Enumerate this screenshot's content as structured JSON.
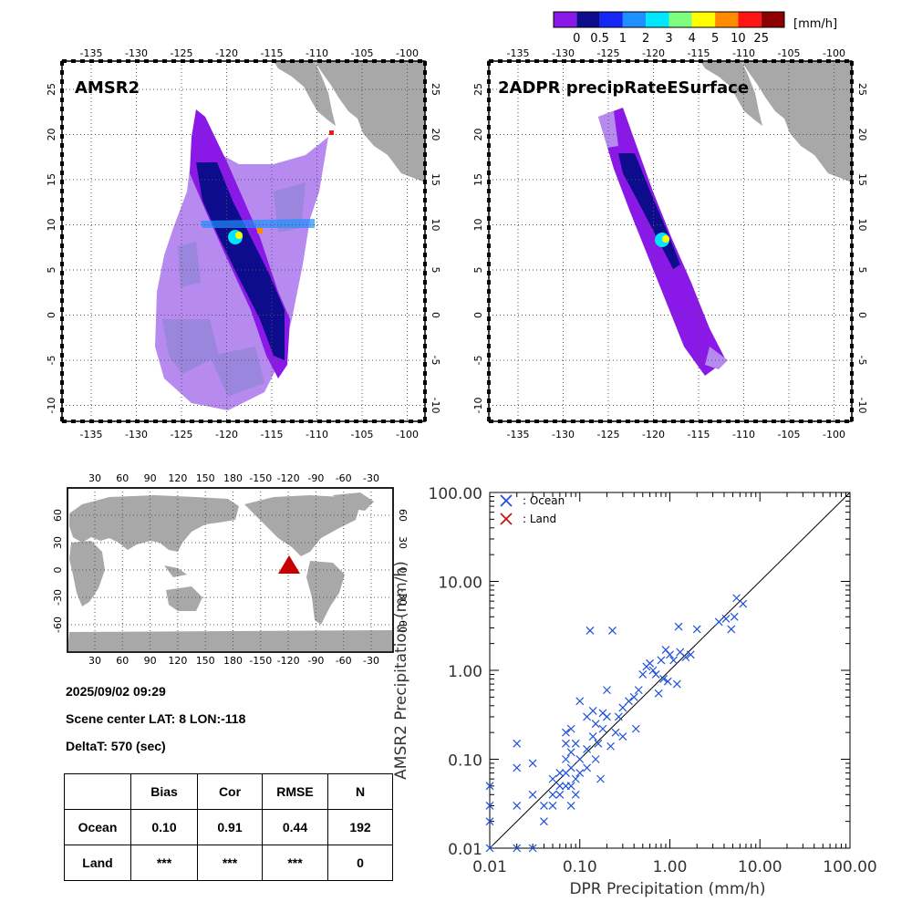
{
  "colorbar": {
    "unit": "[mm/h]",
    "labels": [
      "0",
      "0.5",
      "1",
      "2",
      "3",
      "4",
      "5",
      "10",
      "25"
    ],
    "colors": [
      "#8a18e6",
      "#0c0c8c",
      "#1428f5",
      "#1e90ff",
      "#00e6ff",
      "#7dff7d",
      "#ffff00",
      "#ff8c00",
      "#ff1414",
      "#8c0000"
    ]
  },
  "maps": {
    "left_title": "AMSR2",
    "right_title": "2ADPR precipRateESurface",
    "lon_labels": [
      "-135",
      "-130",
      "-125",
      "-120",
      "-115",
      "-110",
      "-105",
      "-100"
    ],
    "lat_labels": [
      "25",
      "20",
      "15",
      "10",
      "5",
      "0",
      "-5",
      "-10"
    ],
    "land_color": "#a8a8a8",
    "swath_colors": {
      "light": "#b78af0",
      "grayish": "#9a86dc",
      "violet": "#8a18e6",
      "navy": "#0c0c8c"
    }
  },
  "world_map": {
    "top_lon_labels": [
      "30",
      "60",
      "90",
      "120",
      "150",
      "180",
      "-150",
      "-120",
      "-90",
      "-60",
      "-30"
    ],
    "lat_labels": [
      "60",
      "30",
      "0",
      "-30",
      "-60"
    ],
    "marker_color": "#c80000"
  },
  "info": {
    "datetime": "2025/09/02 09:29",
    "scene_center": "Scene center LAT:  8   LON:-118",
    "deltat": "DeltaT:  570 (sec)"
  },
  "stats_table": {
    "headers": [
      "",
      "Bias",
      "Cor",
      "RMSE",
      "N"
    ],
    "rows": [
      [
        "Ocean",
        "0.10",
        "0.91",
        "0.44",
        "192"
      ],
      [
        "Land",
        "***",
        "***",
        "***",
        "0"
      ]
    ]
  },
  "chart_data": {
    "type": "scatter",
    "xlabel": "DPR Precipitation (mm/h)",
    "ylabel": "AMSR2 Precipitation (mm/h)",
    "xscale": "log",
    "yscale": "log",
    "xlim": [
      0.01,
      100
    ],
    "ylim": [
      0.01,
      100
    ],
    "x_ticks": [
      "0.01",
      "0.10",
      "1.00",
      "10.00",
      "100.00"
    ],
    "y_ticks": [
      "0.01",
      "0.10",
      "1.00",
      "10.00",
      "100.00"
    ],
    "reference_line": "1:1",
    "legend_position": "top-left",
    "series": [
      {
        "name": ": Ocean",
        "color": "#1e50dc",
        "marker": "x",
        "points": [
          [
            0.01,
            0.05
          ],
          [
            0.01,
            0.03
          ],
          [
            0.01,
            0.02
          ],
          [
            0.01,
            0.01
          ],
          [
            0.02,
            0.15
          ],
          [
            0.02,
            0.08
          ],
          [
            0.02,
            0.03
          ],
          [
            0.02,
            0.01
          ],
          [
            0.03,
            0.09
          ],
          [
            0.03,
            0.04
          ],
          [
            0.03,
            0.01
          ],
          [
            0.04,
            0.03
          ],
          [
            0.04,
            0.02
          ],
          [
            0.05,
            0.06
          ],
          [
            0.05,
            0.04
          ],
          [
            0.05,
            0.03
          ],
          [
            0.06,
            0.07
          ],
          [
            0.06,
            0.05
          ],
          [
            0.06,
            0.04
          ],
          [
            0.07,
            0.2
          ],
          [
            0.07,
            0.15
          ],
          [
            0.07,
            0.1
          ],
          [
            0.07,
            0.07
          ],
          [
            0.07,
            0.05
          ],
          [
            0.08,
            0.22
          ],
          [
            0.08,
            0.12
          ],
          [
            0.08,
            0.08
          ],
          [
            0.08,
            0.05
          ],
          [
            0.08,
            0.03
          ],
          [
            0.09,
            0.15
          ],
          [
            0.09,
            0.06
          ],
          [
            0.09,
            0.04
          ],
          [
            0.1,
            0.45
          ],
          [
            0.1,
            0.1
          ],
          [
            0.1,
            0.07
          ],
          [
            0.12,
            0.3
          ],
          [
            0.12,
            0.13
          ],
          [
            0.12,
            0.08
          ],
          [
            0.13,
            2.8
          ],
          [
            0.14,
            0.35
          ],
          [
            0.14,
            0.18
          ],
          [
            0.15,
            0.25
          ],
          [
            0.15,
            0.1
          ],
          [
            0.16,
            0.15
          ],
          [
            0.17,
            0.06
          ],
          [
            0.18,
            0.33
          ],
          [
            0.18,
            0.22
          ],
          [
            0.2,
            0.6
          ],
          [
            0.2,
            0.3
          ],
          [
            0.22,
            0.14
          ],
          [
            0.23,
            2.8
          ],
          [
            0.25,
            0.2
          ],
          [
            0.27,
            0.3
          ],
          [
            0.3,
            0.38
          ],
          [
            0.3,
            0.18
          ],
          [
            0.35,
            0.45
          ],
          [
            0.4,
            0.5
          ],
          [
            0.42,
            0.22
          ],
          [
            0.45,
            0.6
          ],
          [
            0.5,
            0.9
          ],
          [
            0.55,
            1.1
          ],
          [
            0.6,
            1.2
          ],
          [
            0.65,
            1.0
          ],
          [
            0.7,
            0.9
          ],
          [
            0.75,
            0.55
          ],
          [
            0.8,
            1.3
          ],
          [
            0.85,
            0.8
          ],
          [
            0.9,
            1.7
          ],
          [
            0.95,
            0.75
          ],
          [
            1.0,
            1.5
          ],
          [
            1.1,
            1.3
          ],
          [
            1.2,
            0.7
          ],
          [
            1.25,
            3.1
          ],
          [
            1.3,
            1.6
          ],
          [
            1.5,
            1.4
          ],
          [
            1.7,
            1.5
          ],
          [
            2.0,
            2.9
          ],
          [
            3.5,
            3.5
          ],
          [
            4.2,
            3.8
          ],
          [
            4.8,
            2.9
          ],
          [
            5.2,
            4.0
          ],
          [
            5.5,
            6.5
          ],
          [
            6.5,
            5.6
          ]
        ]
      },
      {
        "name": ": Land",
        "color": "#c81414",
        "marker": "x",
        "points": []
      }
    ]
  }
}
